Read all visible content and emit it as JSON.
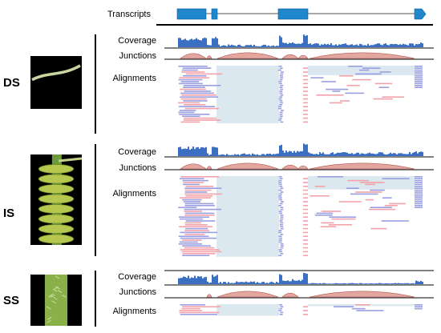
{
  "header": {
    "transcripts_label": "Transcripts"
  },
  "track_labels": {
    "coverage": "Coverage",
    "junctions": "Junctions",
    "alignments": "Alignments"
  },
  "panels": [
    {
      "id": "ds",
      "stage": "DS"
    },
    {
      "id": "is",
      "stage": "IS"
    },
    {
      "id": "ss",
      "stage": "SS"
    }
  ],
  "colors": {
    "exon": "#1f87cc",
    "coverage": "#3b6fc4",
    "junction": "#d98a80",
    "read_forward": "#f2a2a8",
    "read_reverse": "#9a9ee0",
    "intron_fill": "#dbe8f0",
    "photo_bg": "#000000",
    "stem": "#8ab04a"
  }
}
